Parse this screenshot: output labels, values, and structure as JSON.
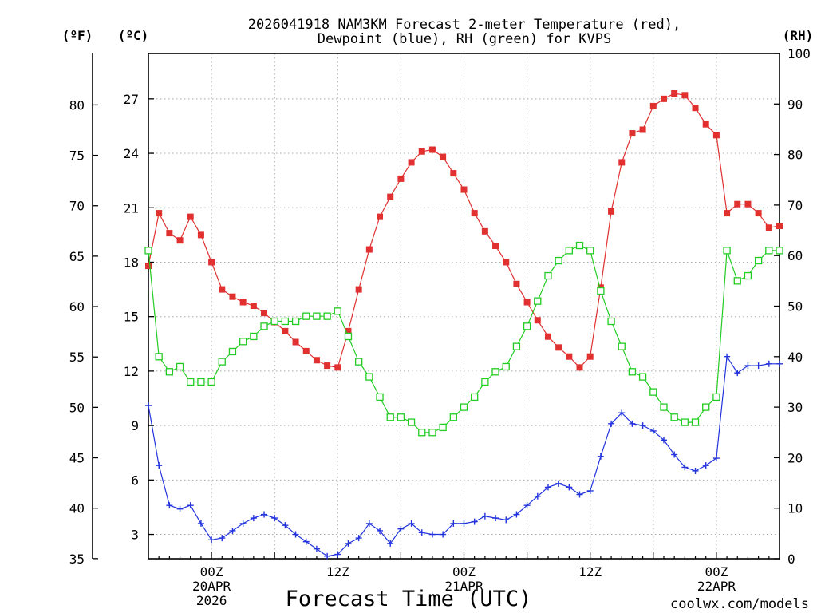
{
  "chart_data": {
    "type": "line",
    "title_line1": "2026041918 NAM3KM Forecast 2-meter Temperature (red),",
    "title_line2": "Dewpoint (blue), RH (green) for KVPS",
    "xlabel": "Forecast Time (UTC)",
    "credit": "coolwx.com/models",
    "unit_labels": {
      "fahrenheit": "(ºF)",
      "celsius": "(ºC)",
      "rh": "(RH)"
    },
    "x_unit": "forecast hour from 2026-04-19 18Z",
    "xlim": [
      0,
      60
    ],
    "c_lim": [
      1.66,
      29.5
    ],
    "c_ticks": [
      3,
      6,
      9,
      12,
      15,
      18,
      21,
      24,
      27
    ],
    "f_ticks": [
      35,
      40,
      45,
      50,
      55,
      60,
      65,
      70,
      75,
      80
    ],
    "rh_lim": [
      0,
      100
    ],
    "rh_ticks": [
      0,
      10,
      20,
      30,
      40,
      50,
      60,
      70,
      80,
      90,
      100
    ],
    "x_ticks": [
      {
        "hour": 6,
        "lines": [
          "00Z",
          "20APR",
          "2026"
        ]
      },
      {
        "hour": 18,
        "lines": [
          "12Z"
        ]
      },
      {
        "hour": 30,
        "lines": [
          "00Z",
          "21APR"
        ]
      },
      {
        "hour": 42,
        "lines": [
          "12Z"
        ]
      },
      {
        "hour": 54,
        "lines": [
          "00Z",
          "22APR"
        ]
      }
    ],
    "colors": {
      "temperature": "#e03030",
      "dewpoint": "#2233dd",
      "rh": "#22cc22",
      "grid": "#a8a8a8",
      "credit": "#e03030"
    },
    "series": [
      {
        "name": "Temperature (ºC)",
        "marker": "filled-square",
        "values": [
          17.8,
          20.7,
          19.6,
          19.2,
          20.5,
          19.5,
          18.0,
          16.5,
          16.1,
          15.8,
          15.6,
          15.2,
          14.7,
          14.2,
          13.6,
          13.1,
          12.6,
          12.3,
          12.2,
          14.2,
          16.5,
          18.7,
          20.5,
          21.6,
          22.6,
          23.5,
          24.1,
          24.2,
          23.8,
          22.9,
          22.0,
          20.7,
          19.7,
          18.9,
          18.0,
          16.8,
          15.8,
          14.8,
          13.9,
          13.3,
          12.8,
          12.2,
          12.8,
          16.6,
          20.8,
          23.5,
          25.1,
          25.3,
          26.6,
          27.0,
          27.3,
          27.2,
          26.5,
          25.6,
          25.0,
          20.7,
          21.2,
          21.2,
          20.7,
          19.9,
          20.0
        ]
      },
      {
        "name": "Dewpoint (ºC)",
        "marker": "plus",
        "values": [
          10.1,
          6.8,
          4.6,
          4.4,
          4.6,
          3.6,
          2.7,
          2.8,
          3.2,
          3.6,
          3.9,
          4.1,
          3.9,
          3.5,
          3.0,
          2.6,
          2.2,
          1.8,
          1.9,
          2.5,
          2.8,
          3.6,
          3.2,
          2.5,
          3.3,
          3.6,
          3.1,
          3.0,
          3.0,
          3.6,
          3.6,
          3.7,
          4.0,
          3.9,
          3.8,
          4.1,
          4.6,
          5.1,
          5.6,
          5.8,
          5.6,
          5.2,
          5.4,
          7.3,
          9.1,
          9.7,
          9.1,
          9.0,
          8.7,
          8.2,
          7.4,
          6.7,
          6.5,
          6.8,
          7.2,
          12.8,
          11.9,
          12.3,
          12.3,
          12.4,
          12.4
        ]
      },
      {
        "name": "RH (%)",
        "marker": "open-square",
        "values": [
          61,
          40,
          37,
          38,
          35,
          35,
          35,
          39,
          41,
          43,
          44,
          46,
          47,
          47,
          47,
          48,
          48,
          48,
          49,
          44,
          39,
          36,
          32,
          28,
          28,
          27,
          25,
          25,
          26,
          28,
          30,
          32,
          35,
          37,
          38,
          42,
          46,
          51,
          56,
          59,
          61,
          62,
          61,
          53,
          47,
          42,
          37,
          36,
          33,
          30,
          28,
          27,
          27,
          30,
          32,
          61,
          55,
          56,
          59,
          61,
          61
        ]
      }
    ]
  }
}
